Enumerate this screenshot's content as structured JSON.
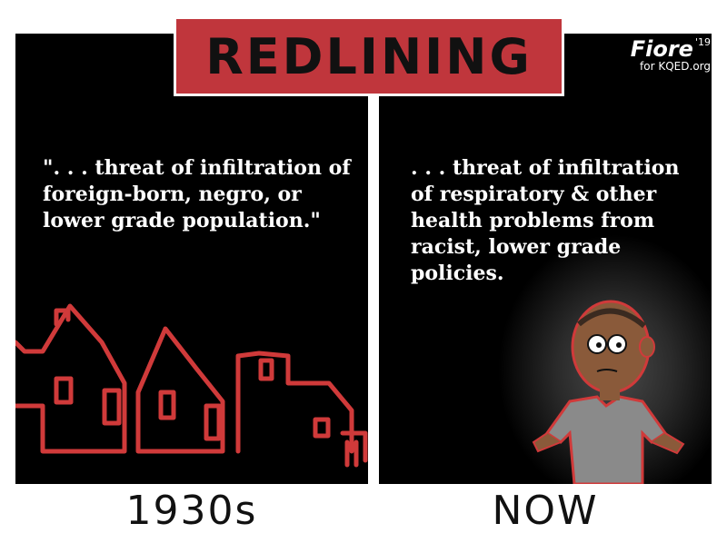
{
  "title": "REDLINING",
  "signature": {
    "name": "Fiore",
    "year": "'19",
    "credit": "for KQED.org"
  },
  "left_panel": {
    "quote": "\". . . threat of infiltration of foreign-born, negro, or lower grade population.\"",
    "caption": "1930s"
  },
  "right_panel": {
    "quote": ". . . threat of infiltration of respiratory & other health problems from racist, lower grade policies.",
    "caption": "NOW"
  },
  "colors": {
    "title_red": "#c0363c",
    "house_red": "#d03a3a",
    "panel_bg": "#000000",
    "shirt_gray": "#8a8a8a",
    "skin": "#8a5a3a"
  }
}
